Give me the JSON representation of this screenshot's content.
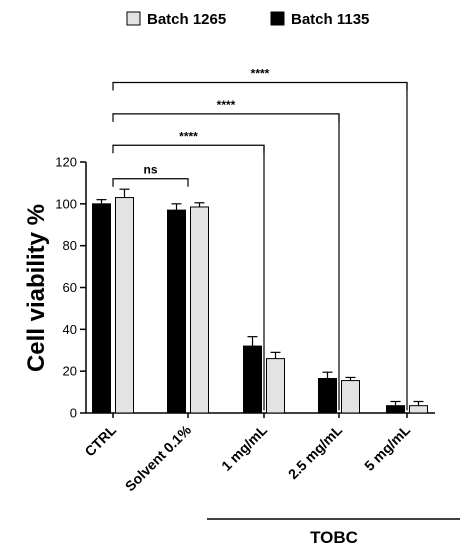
{
  "chart_data": {
    "type": "bar",
    "title": "",
    "xlabel": "",
    "ylabel": "Cell viability %",
    "ylim": [
      0,
      120
    ],
    "yticks": [
      0,
      20,
      40,
      60,
      80,
      100,
      120
    ],
    "categories": [
      "CTRL",
      "Solvent 0.1%",
      "1 mg/mL",
      "2.5 mg/mL",
      "5 mg/mL"
    ],
    "legend_position": "top",
    "series": [
      {
        "name": "Batch 1135",
        "color": "#000000",
        "values": [
          100,
          97,
          32,
          16.5,
          3.5
        ],
        "errors": [
          2,
          3,
          4.5,
          3,
          2
        ]
      },
      {
        "name": "Batch 1265",
        "color": "#e3e3e3",
        "values": [
          103,
          98.5,
          26,
          15.5,
          3.5
        ],
        "errors": [
          4,
          2,
          3,
          1.5,
          2
        ]
      }
    ],
    "legend_order": [
      1,
      0
    ],
    "comparisons": [
      {
        "from": 0,
        "to": 1,
        "label": "ns",
        "y": 112
      },
      {
        "from": 0,
        "to": 2,
        "label": "****",
        "y": 128
      },
      {
        "from": 0,
        "to": 3,
        "label": "****",
        "y": 143
      },
      {
        "from": 0,
        "to": 4,
        "label": "****",
        "y": 158
      }
    ],
    "group_bracket": {
      "label": "TOBC",
      "from": 2,
      "to": 4
    }
  }
}
